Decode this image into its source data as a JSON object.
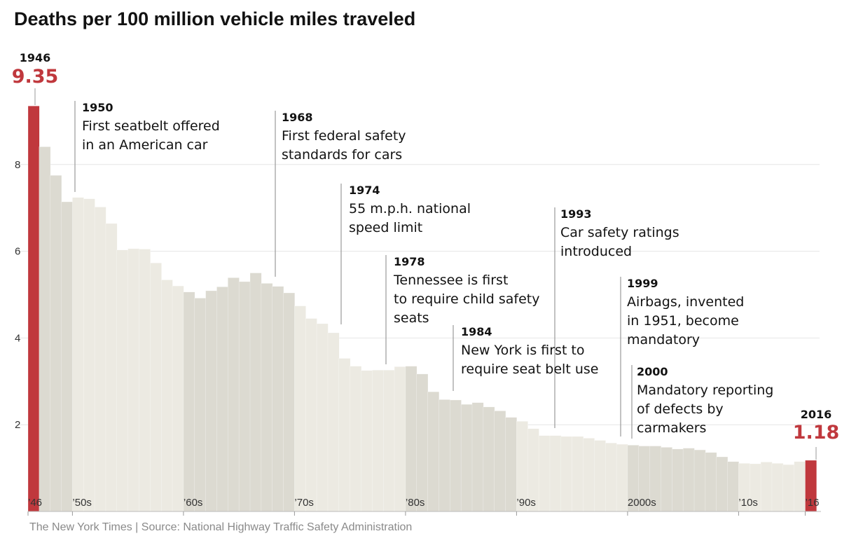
{
  "chart_data": {
    "type": "bar",
    "title": "Deaths per 100 million vehicle miles traveled",
    "xlabel": "",
    "ylabel": "",
    "ylim": [
      0,
      9.35
    ],
    "y_ticks": [
      2,
      4,
      6,
      8
    ],
    "x": [
      1946,
      1947,
      1948,
      1949,
      1950,
      1951,
      1952,
      1953,
      1954,
      1955,
      1956,
      1957,
      1958,
      1959,
      1960,
      1961,
      1962,
      1963,
      1964,
      1965,
      1966,
      1967,
      1968,
      1969,
      1970,
      1971,
      1972,
      1973,
      1974,
      1975,
      1976,
      1977,
      1978,
      1979,
      1980,
      1981,
      1982,
      1983,
      1984,
      1985,
      1986,
      1987,
      1988,
      1989,
      1990,
      1991,
      1992,
      1993,
      1994,
      1995,
      1996,
      1997,
      1998,
      1999,
      2000,
      2001,
      2002,
      2003,
      2004,
      2005,
      2006,
      2007,
      2008,
      2009,
      2010,
      2011,
      2012,
      2013,
      2014,
      2015,
      2016
    ],
    "values": [
      9.35,
      8.41,
      7.75,
      7.14,
      7.24,
      7.21,
      7.02,
      6.64,
      6.03,
      6.06,
      6.05,
      5.73,
      5.34,
      5.2,
      5.06,
      4.92,
      5.09,
      5.18,
      5.39,
      5.3,
      5.5,
      5.26,
      5.19,
      5.04,
      4.74,
      4.45,
      4.33,
      4.12,
      3.53,
      3.35,
      3.25,
      3.26,
      3.26,
      3.34,
      3.35,
      3.17,
      2.76,
      2.58,
      2.57,
      2.47,
      2.51,
      2.41,
      2.32,
      2.17,
      2.08,
      1.91,
      1.75,
      1.75,
      1.73,
      1.73,
      1.69,
      1.64,
      1.58,
      1.55,
      1.53,
      1.51,
      1.51,
      1.48,
      1.44,
      1.46,
      1.42,
      1.36,
      1.26,
      1.15,
      1.11,
      1.1,
      1.14,
      1.11,
      1.08,
      1.15,
      1.18
    ],
    "x_tick_labels": [
      {
        "year": 1946,
        "label": "’46"
      },
      {
        "year": 1950,
        "label": "’50s"
      },
      {
        "year": 1960,
        "label": "’60s"
      },
      {
        "year": 1970,
        "label": "’70s"
      },
      {
        "year": 1980,
        "label": "’80s"
      },
      {
        "year": 1990,
        "label": "’90s"
      },
      {
        "year": 2000,
        "label": "2000s"
      },
      {
        "year": 2010,
        "label": "’10s"
      },
      {
        "year": 2016,
        "label": "’16"
      }
    ],
    "highlights": [
      {
        "year_label": "1946",
        "value_label": "9.35"
      },
      {
        "year_label": "2016",
        "value_label": "1.18"
      }
    ],
    "annotations": [
      {
        "year": "1950",
        "lines": [
          "First seatbelt offered",
          "in an American car"
        ]
      },
      {
        "year": "1968",
        "lines": [
          "First federal safety",
          "standards for cars"
        ]
      },
      {
        "year": "1974",
        "lines": [
          "55 m.p.h. national",
          "speed limit"
        ]
      },
      {
        "year": "1978",
        "lines": [
          "Tennessee is first",
          "to require child safety",
          "seats"
        ]
      },
      {
        "year": "1984",
        "lines": [
          "New York is first to",
          "require seat belt use"
        ]
      },
      {
        "year": "1993",
        "lines": [
          "Car safety ratings",
          "introduced"
        ]
      },
      {
        "year": "1999",
        "lines": [
          "Airbags, invented",
          "in 1951, become",
          "mandatory"
        ]
      },
      {
        "year": "2000",
        "lines": [
          "Mandatory reporting",
          "of defects by",
          "carmakers"
        ]
      }
    ],
    "colors": {
      "highlight": "#c0383d",
      "decade_light": "#eceae2",
      "decade_dark": "#dcdad1",
      "leader": "#999999"
    }
  },
  "footer": {
    "source": "The New York Times | Source: National Highway Traffic Safety Administration"
  }
}
